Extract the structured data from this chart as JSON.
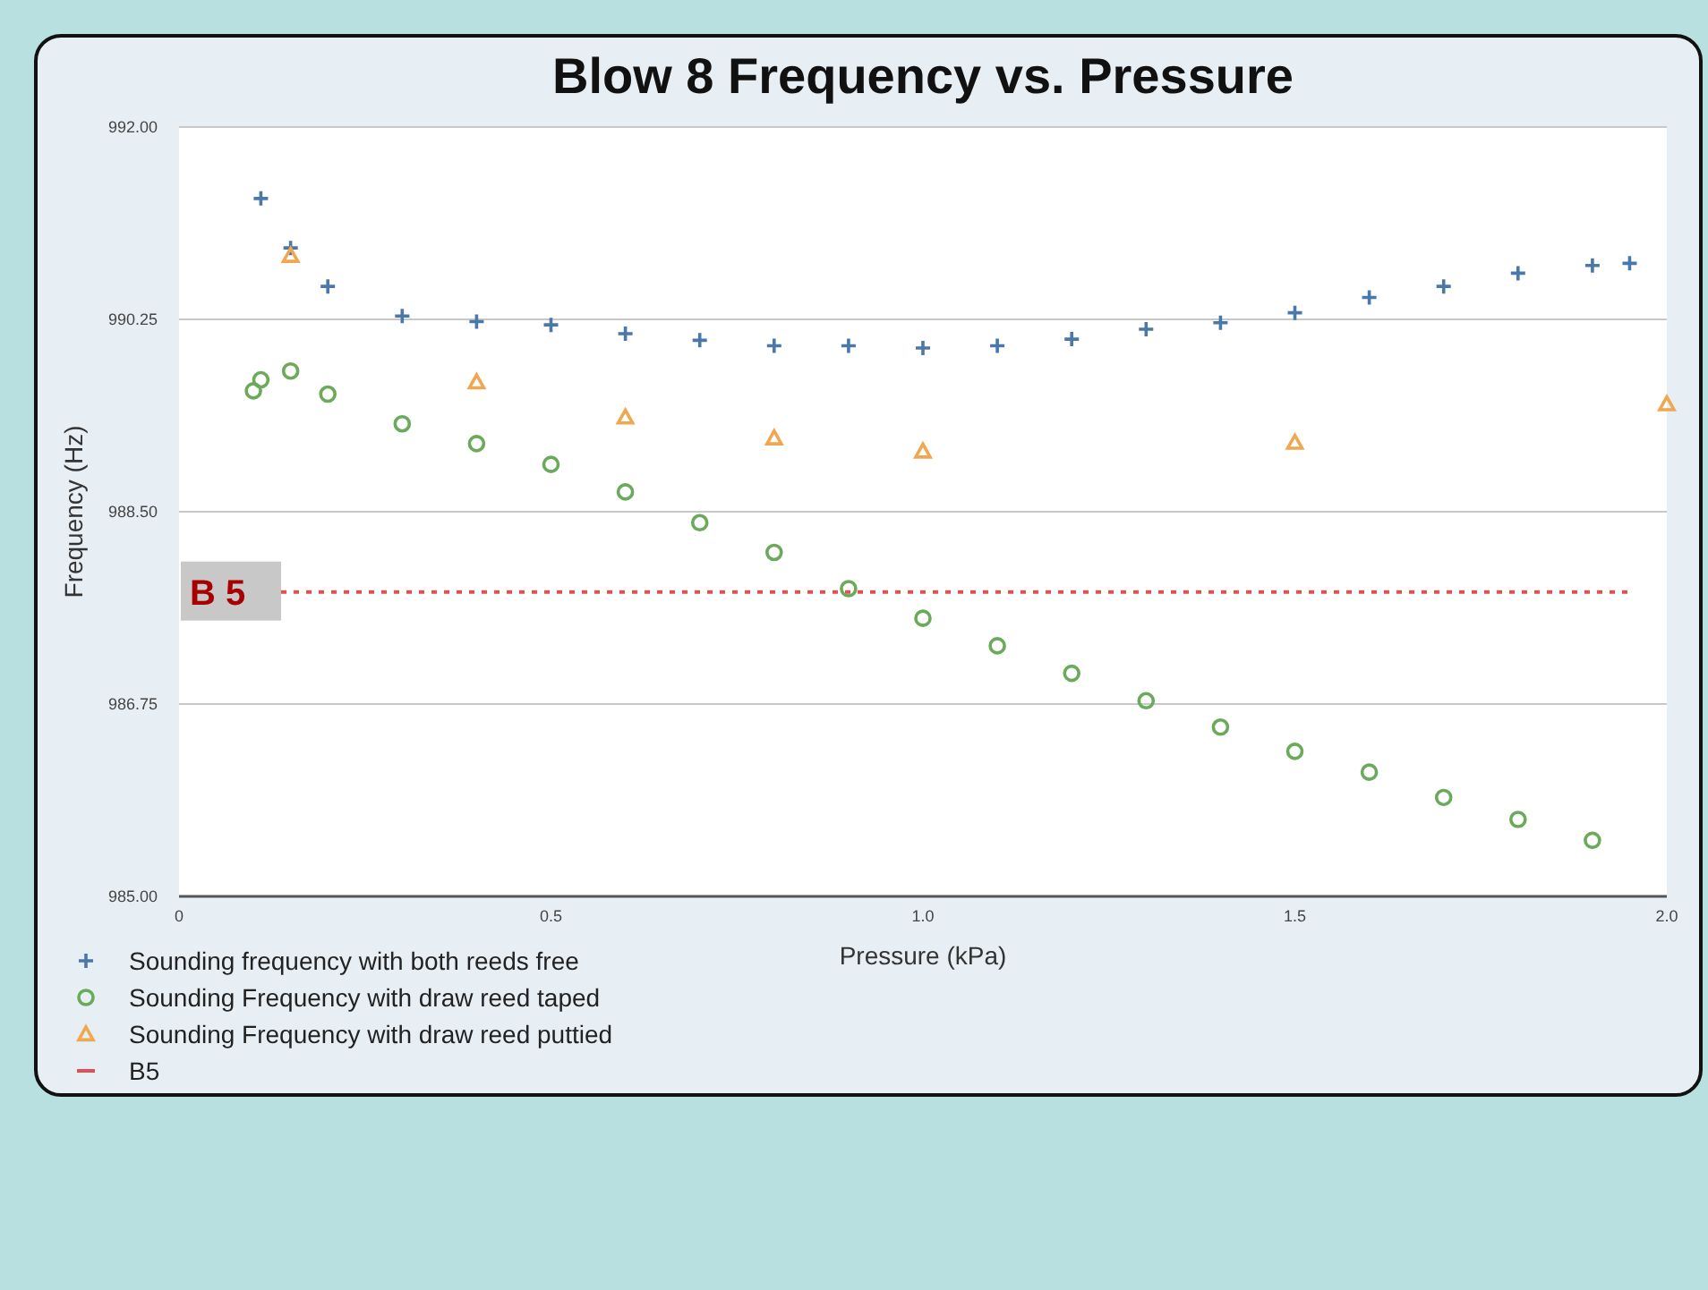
{
  "chart_data": {
    "type": "scatter",
    "title": "Blow 8 Frequency vs. Pressure",
    "xlabel": "Pressure (kPa)",
    "ylabel": "Frequency (Hz)",
    "xlim": [
      0,
      2
    ],
    "xticks": [
      0,
      0.5,
      {
        "value": 1,
        "label": "1.0"
      },
      1.5,
      {
        "value": 2,
        "label": "2.0"
      }
    ],
    "ylim": [
      985,
      992
    ],
    "yticks": [
      {
        "value": 985,
        "label": "985.00"
      },
      {
        "value": 986.75,
        "label": "986.75"
      },
      {
        "value": 988.5,
        "label": "988.50"
      },
      {
        "value": 990.25,
        "label": "990.25"
      },
      {
        "value": 992,
        "label": "992.00"
      }
    ],
    "grid": "y",
    "legend": "bottom",
    "series": [
      {
        "name": "Sounding frequency with both reeds free",
        "color": "#4a78a8",
        "marker": "cross",
        "x": [
          0.11,
          0.15,
          0.2,
          0.3,
          0.4,
          0.5,
          0.6,
          0.7,
          0.8,
          0.9,
          1.0,
          1.1,
          1.2,
          1.3,
          1.4,
          1.5,
          1.6,
          1.7,
          1.8,
          1.9,
          1.95
        ],
        "values": [
          991.35,
          990.9,
          990.55,
          990.28,
          990.23,
          990.2,
          990.12,
          990.06,
          990.01,
          990.01,
          989.99,
          990.01,
          990.07,
          990.16,
          990.22,
          990.31,
          990.45,
          990.55,
          990.67,
          990.74,
          990.76
        ]
      },
      {
        "name": "Sounding Frequency with draw reed taped",
        "color": "#6aaa5a",
        "marker": "circle",
        "x": [
          0.1,
          0.11,
          0.15,
          0.2,
          0.3,
          0.4,
          0.5,
          0.6,
          0.7,
          0.8,
          0.9,
          1.0,
          1.1,
          1.2,
          1.3,
          1.4,
          1.5,
          1.6,
          1.7,
          1.8,
          1.9
        ],
        "values": [
          989.6,
          989.7,
          989.78,
          989.57,
          989.3,
          989.12,
          988.93,
          988.68,
          988.4,
          988.13,
          987.8,
          987.53,
          987.28,
          987.03,
          986.78,
          986.54,
          986.32,
          986.13,
          985.9,
          985.7,
          985.51
        ]
      },
      {
        "name": "Sounding Frequency with draw reed puttied",
        "color": "#f0a850",
        "marker": "triangle",
        "x": [
          0.15,
          0.4,
          0.6,
          0.8,
          1.0,
          1.5,
          2.0
        ],
        "values": [
          990.83,
          989.68,
          989.36,
          989.17,
          989.05,
          989.13,
          989.48
        ]
      }
    ],
    "ref_lines": [
      {
        "axis": "y",
        "value": 987.77,
        "label": "B5",
        "color": "#e05050",
        "line_style": "dotted"
      }
    ],
    "annotations": [
      "B 5"
    ]
  }
}
